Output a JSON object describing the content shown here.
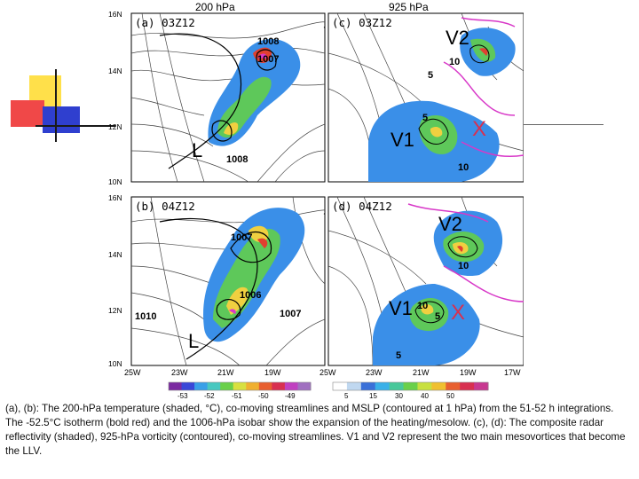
{
  "figure": {
    "top_titles": {
      "left": "200 hPa",
      "right": "925 hPa"
    },
    "panels": {
      "a": {
        "label": "(a) 03Z12",
        "isobars": [
          "1008",
          "1007",
          "1008"
        ],
        "marker": "L"
      },
      "b": {
        "label": "(b) 04Z12",
        "isobars": [
          "1007",
          "1006",
          "1007",
          "1010"
        ],
        "marker": "L"
      },
      "c": {
        "label": "(c) 03Z12",
        "contours": [
          "5",
          "10",
          "5",
          "10"
        ],
        "markers": [
          "V2",
          "V1",
          "X"
        ]
      },
      "d": {
        "label": "(d) 04Z12",
        "contours": [
          "10",
          "10",
          "5",
          "5"
        ],
        "markers": [
          "V2",
          "V1",
          "X"
        ]
      }
    },
    "y_ticks_top": [
      "16N",
      "14N",
      "12N",
      "10N"
    ],
    "y_ticks_bottom": [
      "16N",
      "14N",
      "12N",
      "10N"
    ],
    "x_ticks_left": [
      "25W",
      "23W",
      "21W",
      "19W"
    ],
    "x_ticks_right": [
      "25W",
      "23W",
      "21W",
      "19W",
      "17W"
    ],
    "colorbar_left": {
      "ticks": [
        "-53",
        "-52",
        "-51",
        "-50",
        "-49"
      ],
      "colors": [
        "#7b2aa0",
        "#3a48d8",
        "#3aa0e8",
        "#49c8c0",
        "#6ad04a",
        "#d8e040",
        "#f0b030",
        "#e86030",
        "#d83050",
        "#c040c0",
        "#a070c0"
      ]
    },
    "colorbar_right": {
      "ticks": [
        "5",
        "15",
        "30",
        "40",
        "50"
      ],
      "colors": [
        "#ffffff",
        "#c0d8f0",
        "#3a70d8",
        "#3ab0e8",
        "#49c89a",
        "#6ad04a",
        "#c8e040",
        "#f0c030",
        "#e86030",
        "#d83050",
        "#c83890"
      ]
    },
    "shading": {
      "blue": "#3a8fe8",
      "green": "#5ec85a",
      "yellow": "#f0d040",
      "red": "#e04030",
      "magenta": "#d838c8"
    }
  },
  "caption": "(a), (b): The 200-hPa temperature (shaded, °C), co-moving streamlines and MSLP (contoured at 1 hPa) from the 51-52 h integrations. The -52.5°C isotherm (bold red) and the 1006-hPa isobar show the expansion of the heating/mesolow. (c), (d): The composite radar reflectivity (shaded), 925-hPa vorticity (contoured), co-moving streamlines. V1 and V2 represent the two main mesovortices that become the LLV."
}
